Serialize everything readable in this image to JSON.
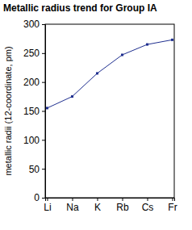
{
  "chart_data": {
    "type": "line",
    "title": "Metallic radius trend for Group IA",
    "y_label": "metallic radii (12-coordinate, pm)",
    "categories": [
      "Li",
      "Na",
      "K",
      "Rb",
      "Cs",
      "Fr"
    ],
    "values": [
      155,
      175,
      215,
      247,
      265,
      273
    ],
    "color": "#1f2f8f",
    "marker": "square",
    "ylim": [
      0,
      300
    ],
    "yticks": [
      0,
      50,
      100,
      150,
      200,
      250,
      300
    ],
    "grid": false
  }
}
